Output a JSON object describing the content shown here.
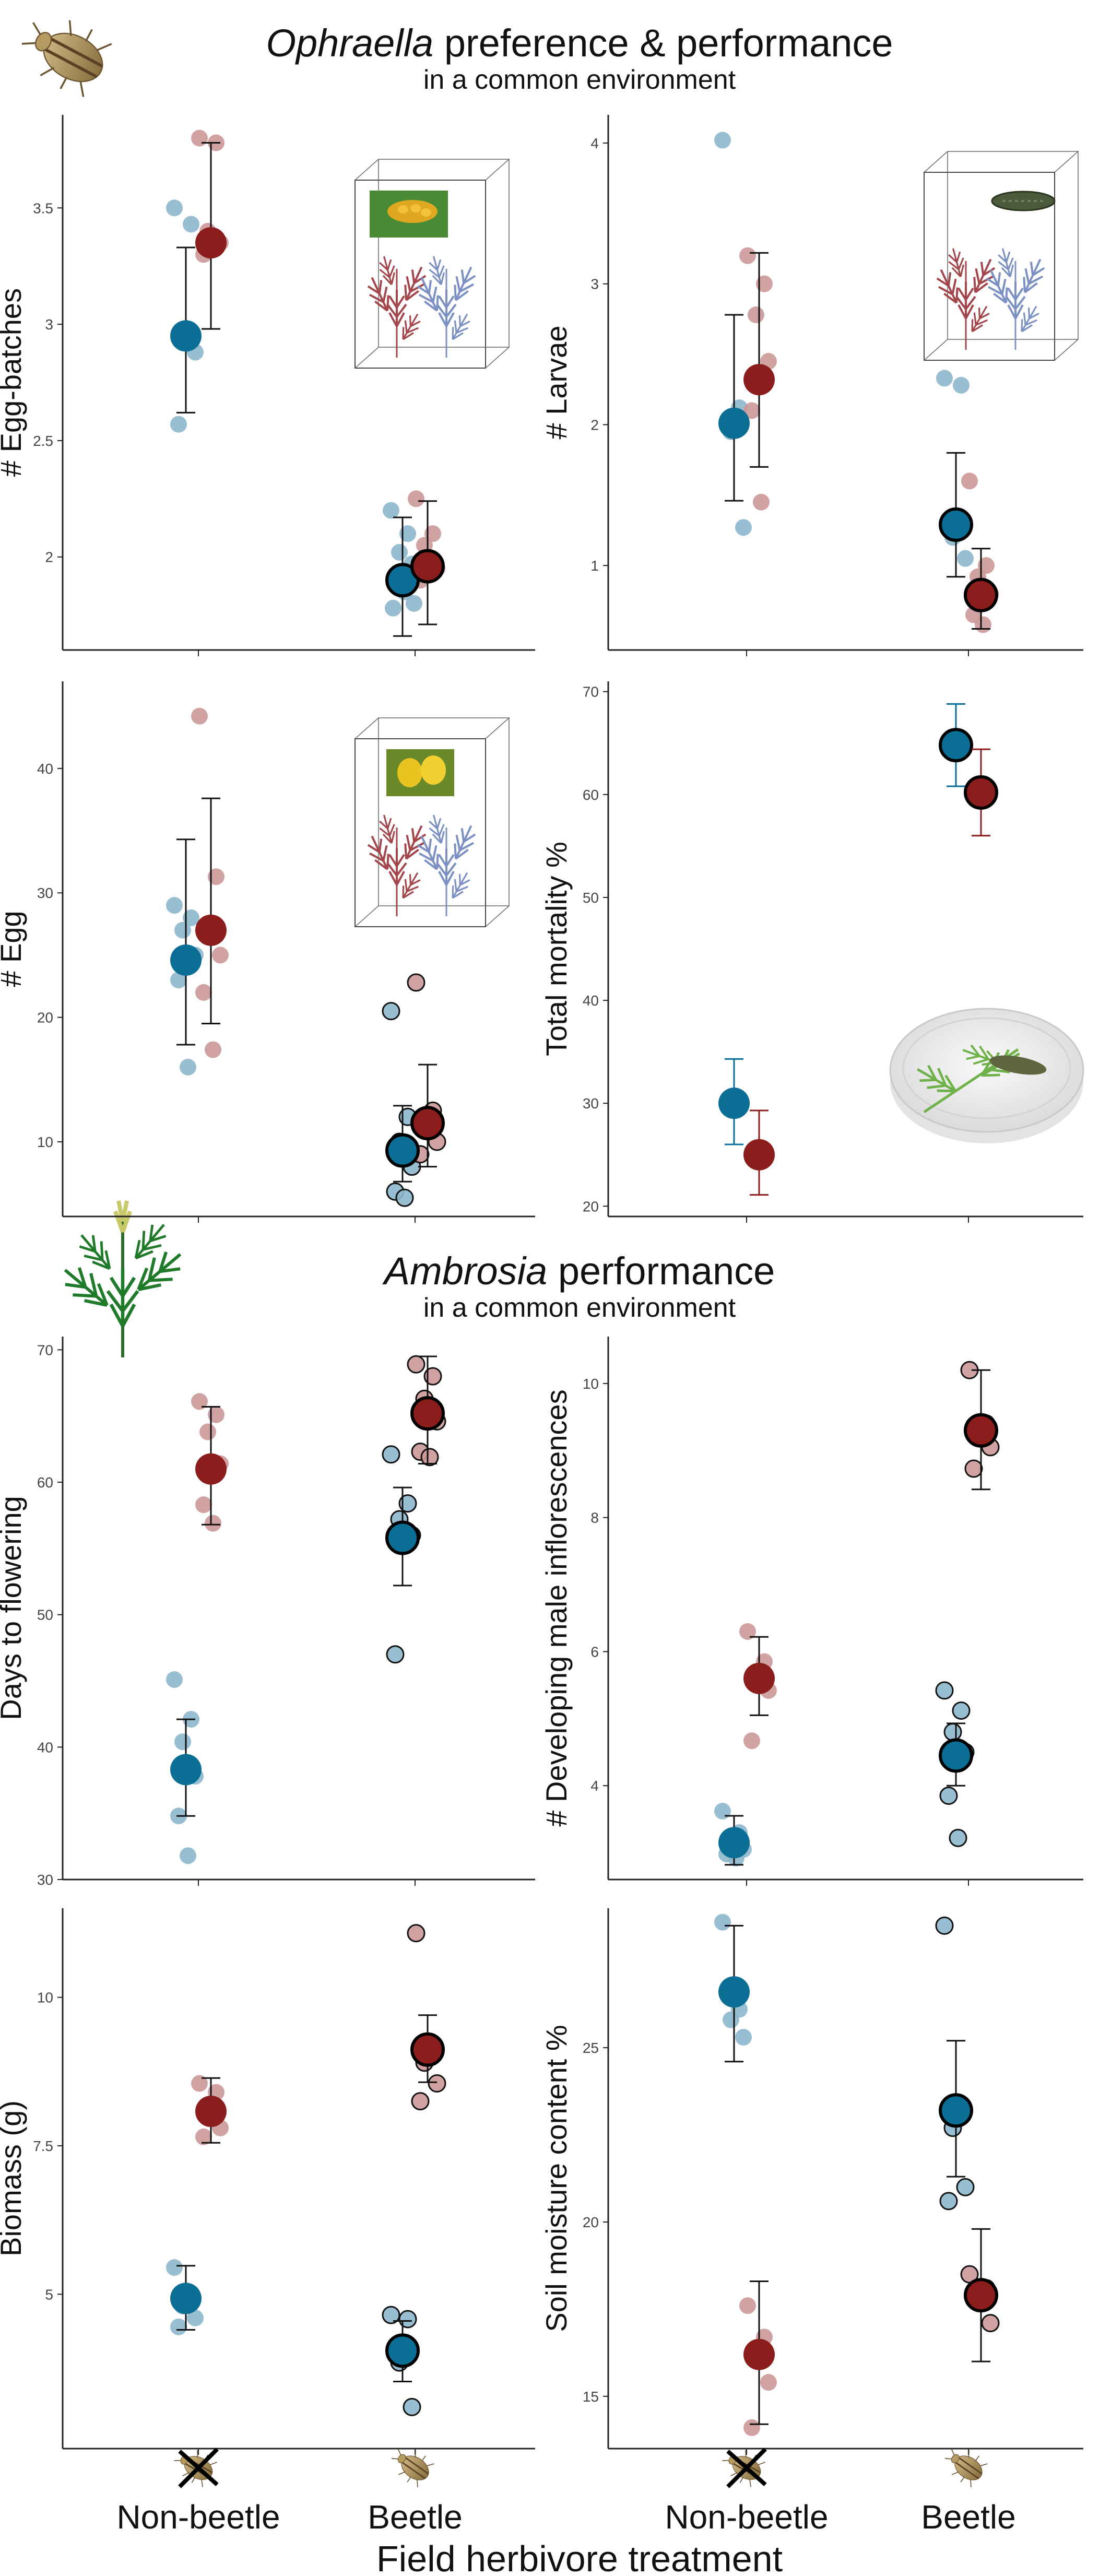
{
  "colors": {
    "blue": "#0b6e94",
    "red": "#8c1d1d",
    "blue_light": "#8db7cc",
    "red_light": "#cc9898"
  },
  "titles": {
    "ophraella_italic": "Ophraella",
    "ophraella_rest": " preference & performance",
    "ophraella_sub": "in a common environment",
    "ambrosia_italic": "Ambrosia",
    "ambrosia_rest": " performance",
    "ambrosia_sub": "in a common environment"
  },
  "x_categories": [
    "Non-beetle",
    "Beetle"
  ],
  "xlabel": "Field herbivore treatment",
  "icons": [
    "beetle-icon",
    "ragweed-icon",
    "plant-cage-icon",
    "petri-dish-icon",
    "crossed-beetle-icon"
  ],
  "chart_data": [
    {
      "type": "scatter",
      "ylabel": "# Egg-batches",
      "ylim": [
        1.6,
        3.9
      ],
      "yticks": [
        2.0,
        2.5,
        3.0,
        3.5
      ],
      "categories": [
        "Non-beetle",
        "Beetle"
      ],
      "series": [
        {
          "color": "blue",
          "means": [
            2.95,
            1.9
          ],
          "lower": [
            2.62,
            1.66
          ],
          "upper": [
            3.33,
            2.17
          ],
          "points": [
            [
              3.5,
              3.43,
              2.92,
              2.88,
              2.57
            ],
            [
              2.2,
              2.1,
              2.02,
              1.97,
              1.92,
              1.85,
              1.8,
              1.78
            ]
          ]
        },
        {
          "color": "red",
          "means": [
            3.35,
            1.96
          ],
          "lower": [
            2.98,
            1.71
          ],
          "upper": [
            3.78,
            2.24
          ],
          "points": [
            [
              3.8,
              3.78,
              3.4,
              3.35,
              3.3
            ],
            [
              2.25,
              2.1,
              2.05,
              1.95,
              1.9
            ]
          ]
        }
      ]
    },
    {
      "type": "scatter",
      "ylabel": "# Larvae",
      "ylim": [
        0.4,
        4.2
      ],
      "yticks": [
        1,
        2,
        3,
        4
      ],
      "categories": [
        "Non-beetle",
        "Beetle"
      ],
      "series": [
        {
          "color": "blue",
          "means": [
            2.01,
            1.29
          ],
          "lower": [
            1.46,
            0.92
          ],
          "upper": [
            2.78,
            1.8
          ],
          "points": [
            [
              4.02,
              2.12,
              1.95,
              1.27
            ],
            [
              2.33,
              2.28,
              1.2,
              1.05
            ]
          ]
        },
        {
          "color": "red",
          "means": [
            2.32,
            0.79
          ],
          "lower": [
            1.7,
            0.55
          ],
          "upper": [
            3.22,
            1.12
          ],
          "points": [
            [
              3.2,
              3.0,
              2.78,
              2.45,
              2.1,
              1.45
            ],
            [
              1.6,
              1.0,
              0.92,
              0.8,
              0.65,
              0.58
            ]
          ]
        }
      ]
    },
    {
      "type": "scatter",
      "ylabel": "# Egg",
      "ylim": [
        4,
        47
      ],
      "yticks": [
        10,
        20,
        30,
        40
      ],
      "categories": [
        "Non-beetle",
        "Beetle"
      ],
      "series": [
        {
          "color": "blue",
          "means": [
            24.6,
            9.3
          ],
          "lower": [
            17.8,
            6.8
          ],
          "upper": [
            34.3,
            12.9
          ],
          "points": [
            [
              29,
              28,
              27,
              25,
              23,
              16
            ],
            [
              20.5,
              12,
              10,
              8,
              6,
              5.5
            ]
          ]
        },
        {
          "color": "red",
          "means": [
            27.0,
            11.5
          ],
          "lower": [
            19.5,
            8.0
          ],
          "upper": [
            37.6,
            16.2
          ],
          "points": [
            [
              44.2,
              31.3,
              27.5,
              25,
              22,
              17.4
            ],
            [
              22.8,
              12.5,
              11,
              10,
              9
            ]
          ]
        }
      ]
    },
    {
      "type": "scatter",
      "ylabel": "Total mortality %",
      "ylim": [
        19,
        71
      ],
      "yticks": [
        20,
        30,
        40,
        50,
        60,
        70
      ],
      "categories": [
        "Non-beetle",
        "Beetle"
      ],
      "series": [
        {
          "color": "blue",
          "means": [
            30.0,
            64.8
          ],
          "lower": [
            26.0,
            60.8
          ],
          "upper": [
            34.3,
            68.8
          ],
          "points": [
            [],
            []
          ]
        },
        {
          "color": "red",
          "means": [
            25.0,
            60.2
          ],
          "lower": [
            21.1,
            56.0
          ],
          "upper": [
            29.3,
            64.4
          ],
          "points": [
            [],
            []
          ]
        }
      ]
    },
    {
      "type": "scatter",
      "ylabel": "Days to flowering",
      "ylim": [
        30,
        71
      ],
      "yticks": [
        30,
        40,
        50,
        60,
        70
      ],
      "categories": [
        "Non-beetle",
        "Beetle"
      ],
      "series": [
        {
          "color": "blue",
          "means": [
            38.3,
            55.8
          ],
          "lower": [
            34.8,
            52.2
          ],
          "upper": [
            42.1,
            59.6
          ],
          "points": [
            [
              45.1,
              42.1,
              40.4,
              37.8,
              34.8,
              31.8
            ],
            [
              62.1,
              58.4,
              57.2,
              56,
              47.0
            ]
          ]
        },
        {
          "color": "red",
          "means": [
            61.0,
            65.2
          ],
          "lower": [
            56.8,
            61.4
          ],
          "upper": [
            65.7,
            69.5
          ],
          "points": [
            [
              66.1,
              65.1,
              63.8,
              61.4,
              58.3,
              56.9
            ],
            [
              68.9,
              68.0,
              66.3,
              64.6,
              62.3,
              61.9
            ]
          ]
        }
      ]
    },
    {
      "type": "scatter",
      "ylabel": "# Developing male inflorescences",
      "ylim": [
        2.6,
        10.7
      ],
      "yticks": [
        4,
        6,
        8,
        10
      ],
      "categories": [
        "Non-beetle",
        "Beetle"
      ],
      "series": [
        {
          "color": "blue",
          "means": [
            3.15,
            4.45
          ],
          "lower": [
            2.82,
            4.0
          ],
          "upper": [
            3.55,
            4.93
          ],
          "points": [
            [
              3.62,
              3.3,
              3.1,
              3.05,
              2.98,
              2.92
            ],
            [
              5.42,
              5.12,
              4.8,
              4.5,
              3.85,
              3.22
            ]
          ]
        },
        {
          "color": "red",
          "means": [
            5.6,
            9.3
          ],
          "lower": [
            5.05,
            8.42
          ],
          "upper": [
            6.22,
            10.2
          ],
          "points": [
            [
              6.3,
              5.85,
              5.55,
              5.42,
              4.67
            ],
            [
              10.2,
              9.4,
              9.32,
              9.05,
              8.73
            ]
          ]
        }
      ]
    },
    {
      "type": "scatter",
      "ylabel": "Biomass (g)",
      "ylim": [
        2.4,
        11.5
      ],
      "yticks": [
        5.0,
        7.5,
        10.0
      ],
      "categories": [
        "Non-beetle",
        "Beetle"
      ],
      "series": [
        {
          "color": "blue",
          "means": [
            4.93,
            4.05
          ],
          "lower": [
            4.4,
            3.53
          ],
          "upper": [
            5.48,
            4.55
          ],
          "points": [
            [
              5.45,
              5.0,
              4.8,
              4.6,
              4.45
            ],
            [
              4.65,
              4.58,
              3.85,
              3.1
            ]
          ]
        },
        {
          "color": "red",
          "means": [
            8.08,
            9.12
          ],
          "lower": [
            7.55,
            8.57
          ],
          "upper": [
            8.64,
            9.7
          ],
          "points": [
            [
              8.55,
              8.4,
              8.0,
              7.8,
              7.65
            ],
            [
              11.08,
              9.1,
              8.9,
              8.55,
              8.25
            ]
          ]
        }
      ]
    },
    {
      "type": "scatter",
      "ylabel": "Soil moisture content %",
      "ylim": [
        13.5,
        29
      ],
      "yticks": [
        15,
        20,
        25
      ],
      "categories": [
        "Non-beetle",
        "Beetle"
      ],
      "series": [
        {
          "color": "blue",
          "means": [
            26.6,
            23.2
          ],
          "lower": [
            24.6,
            21.3
          ],
          "upper": [
            28.5,
            25.2
          ],
          "points": [
            [
              28.6,
              26.1,
              25.8,
              25.3
            ],
            [
              28.5,
              23.3,
              22.7,
              21.0,
              20.6
            ]
          ]
        },
        {
          "color": "red",
          "means": [
            16.2,
            17.9
          ],
          "lower": [
            14.2,
            16.0
          ],
          "upper": [
            18.3,
            19.8
          ],
          "points": [
            [
              17.6,
              16.7,
              16.3,
              15.4,
              14.1
            ],
            [
              18.5,
              18.1,
              17.7,
              17.1
            ]
          ]
        }
      ]
    }
  ]
}
